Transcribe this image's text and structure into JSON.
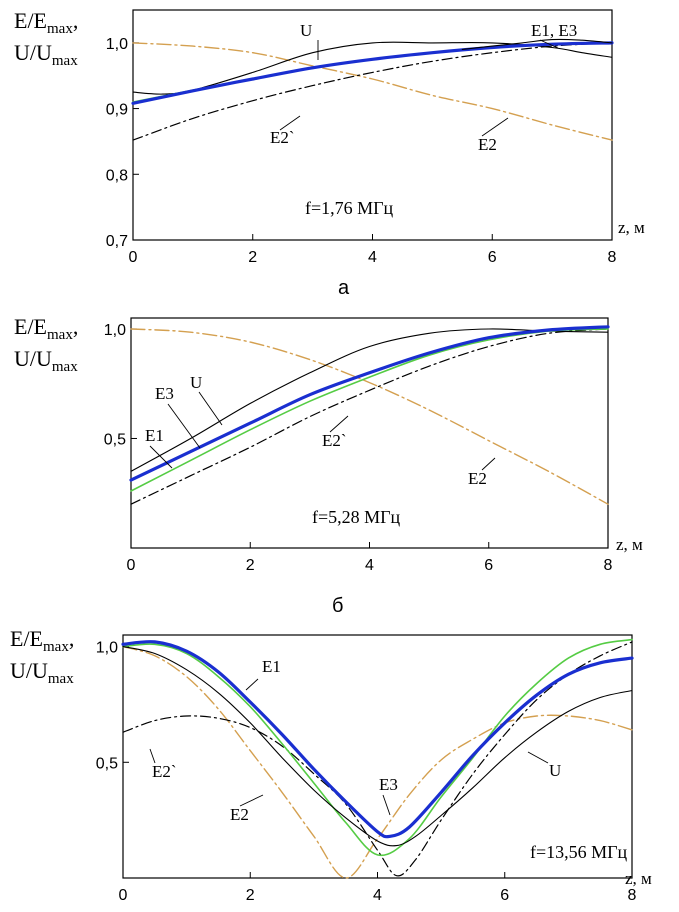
{
  "y_label_line1": "E/E",
  "y_label_line1_sub": "max",
  "y_label_line2": "U/U",
  "y_label_line2_sub": "max",
  "x_unit_label": "z, м",
  "colors": {
    "E1": "#55cc44",
    "E2": "#d4a050",
    "E3": "#1a2fd0",
    "U": "#000000",
    "E2prime": "#000000",
    "frame": "#000000"
  },
  "chart_data": [
    {
      "type": "line",
      "panel_label": "а",
      "annotation": "f=1,76 МГц",
      "xlim": [
        0,
        8
      ],
      "ylim": [
        0.7,
        1.05
      ],
      "x_ticks": [
        "0",
        "2",
        "4",
        "6",
        "8"
      ],
      "y_ticks": [
        "0,7",
        "0,8",
        "0,9",
        "1,0"
      ],
      "y_tick_values": [
        0.7,
        0.8,
        0.9,
        1.0
      ],
      "curve_labels": [
        "U",
        "E1, E3",
        "E2`",
        "E2"
      ],
      "series": [
        {
          "key": "E2",
          "x": [
            0,
            1,
            2,
            3,
            4,
            5,
            6,
            7,
            8
          ],
          "y": [
            1.0,
            0.995,
            0.985,
            0.965,
            0.945,
            0.92,
            0.9,
            0.875,
            0.852
          ]
        },
        {
          "key": "E2prime",
          "x": [
            0,
            1,
            2,
            3,
            4,
            5,
            6,
            7,
            8
          ],
          "y": [
            0.852,
            0.885,
            0.912,
            0.935,
            0.955,
            0.972,
            0.985,
            0.995,
            1.0
          ]
        },
        {
          "key": "U",
          "x": [
            0,
            0.5,
            1,
            2,
            3,
            4,
            5,
            6,
            7,
            7.5,
            8
          ],
          "y": [
            0.925,
            0.922,
            0.928,
            0.955,
            0.985,
            1.0,
            1.0,
            1.0,
            0.993,
            0.985,
            0.978
          ]
        },
        {
          "key": "E1",
          "x": [
            0,
            1,
            2,
            3,
            4,
            5,
            6,
            7,
            8
          ],
          "y": [
            0.91,
            0.928,
            0.945,
            0.962,
            0.975,
            0.985,
            0.993,
            0.998,
            1.0
          ]
        },
        {
          "key": "E3",
          "x": [
            0,
            1,
            2,
            3,
            4,
            5,
            6,
            7,
            8
          ],
          "y": [
            0.908,
            0.927,
            0.945,
            0.962,
            0.975,
            0.985,
            0.993,
            0.998,
            1.0
          ]
        },
        {
          "key": "U2",
          "x": [
            5.5,
            6,
            6.5,
            7,
            7.5,
            8
          ],
          "y": [
            0.99,
            0.995,
            1.0,
            1.005,
            1.004,
            1.0
          ]
        }
      ]
    },
    {
      "type": "line",
      "panel_label": "б",
      "annotation": "f=5,28 МГц",
      "xlim": [
        0,
        8
      ],
      "ylim": [
        0.0,
        1.05
      ],
      "x_ticks": [
        "0",
        "2",
        "4",
        "6",
        "8"
      ],
      "y_ticks": [
        "0,5",
        "1,0"
      ],
      "y_tick_values": [
        0.5,
        1.0
      ],
      "curve_labels": [
        "E3",
        "U",
        "E1",
        "E2`",
        "E2"
      ],
      "series": [
        {
          "key": "E2",
          "x": [
            0,
            1,
            2,
            3,
            4,
            5,
            6,
            7,
            8
          ],
          "y": [
            1.0,
            0.985,
            0.94,
            0.86,
            0.755,
            0.63,
            0.49,
            0.35,
            0.2
          ]
        },
        {
          "key": "E2prime",
          "x": [
            0,
            1,
            2,
            3,
            4,
            5,
            6,
            7,
            8
          ],
          "y": [
            0.2,
            0.33,
            0.46,
            0.6,
            0.72,
            0.83,
            0.92,
            0.98,
            1.0
          ]
        },
        {
          "key": "U",
          "x": [
            0,
            1,
            2,
            3,
            4,
            5,
            6,
            7,
            8
          ],
          "y": [
            0.35,
            0.5,
            0.66,
            0.8,
            0.92,
            0.98,
            1.0,
            0.99,
            0.985
          ]
        },
        {
          "key": "E1",
          "x": [
            0,
            1,
            2,
            3,
            4,
            5,
            6,
            7,
            8
          ],
          "y": [
            0.26,
            0.4,
            0.54,
            0.67,
            0.78,
            0.88,
            0.95,
            0.99,
            1.0
          ]
        },
        {
          "key": "E3",
          "x": [
            0,
            1,
            2,
            3,
            4,
            5,
            6,
            7,
            8
          ],
          "y": [
            0.31,
            0.44,
            0.57,
            0.7,
            0.8,
            0.89,
            0.96,
            0.995,
            1.01
          ]
        }
      ]
    },
    {
      "type": "line",
      "panel_label": "",
      "annotation": "f=13,56 МГц",
      "xlim": [
        0,
        8
      ],
      "ylim": [
        0.0,
        1.05
      ],
      "x_ticks": [
        "0",
        "2",
        "4",
        "6",
        "8"
      ],
      "y_ticks": [
        "0,5",
        "1,0"
      ],
      "y_tick_values": [
        0.5,
        1.0
      ],
      "curve_labels": [
        "E1",
        "E2`",
        "E2",
        "E3",
        "U"
      ],
      "series": [
        {
          "key": "E2",
          "x": [
            0,
            0.5,
            1,
            1.5,
            2,
            2.5,
            3,
            3.5,
            4,
            4.5,
            5,
            5.5,
            6,
            6.5,
            7,
            7.5,
            8
          ],
          "y": [
            1.0,
            0.96,
            0.87,
            0.73,
            0.55,
            0.37,
            0.18,
            0.0,
            0.17,
            0.36,
            0.51,
            0.6,
            0.67,
            0.7,
            0.7,
            0.68,
            0.64
          ]
        },
        {
          "key": "E2prime",
          "x": [
            0,
            0.5,
            1,
            1.5,
            2,
            2.5,
            3,
            3.5,
            4,
            4.3,
            4.6,
            5,
            5.5,
            6,
            6.5,
            7,
            7.5,
            8
          ],
          "y": [
            0.63,
            0.68,
            0.7,
            0.69,
            0.65,
            0.57,
            0.45,
            0.32,
            0.12,
            0.01,
            0.08,
            0.25,
            0.45,
            0.62,
            0.77,
            0.88,
            0.96,
            1.02
          ]
        },
        {
          "key": "E1",
          "x": [
            0,
            0.5,
            1,
            1.5,
            2,
            2.5,
            3,
            3.5,
            4,
            4.5,
            5,
            5.5,
            6,
            6.5,
            7,
            7.5,
            8
          ],
          "y": [
            1.0,
            1.01,
            0.97,
            0.87,
            0.74,
            0.58,
            0.41,
            0.24,
            0.1,
            0.17,
            0.35,
            0.52,
            0.7,
            0.84,
            0.95,
            1.01,
            1.03
          ]
        },
        {
          "key": "U",
          "x": [
            0,
            0.5,
            1,
            1.5,
            2,
            2.5,
            3,
            3.5,
            4,
            4.3,
            4.6,
            5,
            5.5,
            6,
            6.5,
            7,
            7.5,
            8
          ],
          "y": [
            1.0,
            0.97,
            0.9,
            0.8,
            0.67,
            0.52,
            0.38,
            0.26,
            0.16,
            0.14,
            0.18,
            0.27,
            0.39,
            0.52,
            0.63,
            0.72,
            0.78,
            0.81
          ]
        },
        {
          "key": "E3",
          "x": [
            0,
            0.5,
            1,
            1.5,
            2,
            2.5,
            3,
            3.5,
            4,
            4.2,
            4.5,
            5,
            5.5,
            6,
            6.5,
            7,
            7.5,
            8
          ],
          "y": [
            1.01,
            1.02,
            0.98,
            0.89,
            0.76,
            0.62,
            0.47,
            0.33,
            0.2,
            0.18,
            0.22,
            0.37,
            0.53,
            0.67,
            0.79,
            0.88,
            0.93,
            0.95
          ]
        }
      ]
    }
  ]
}
